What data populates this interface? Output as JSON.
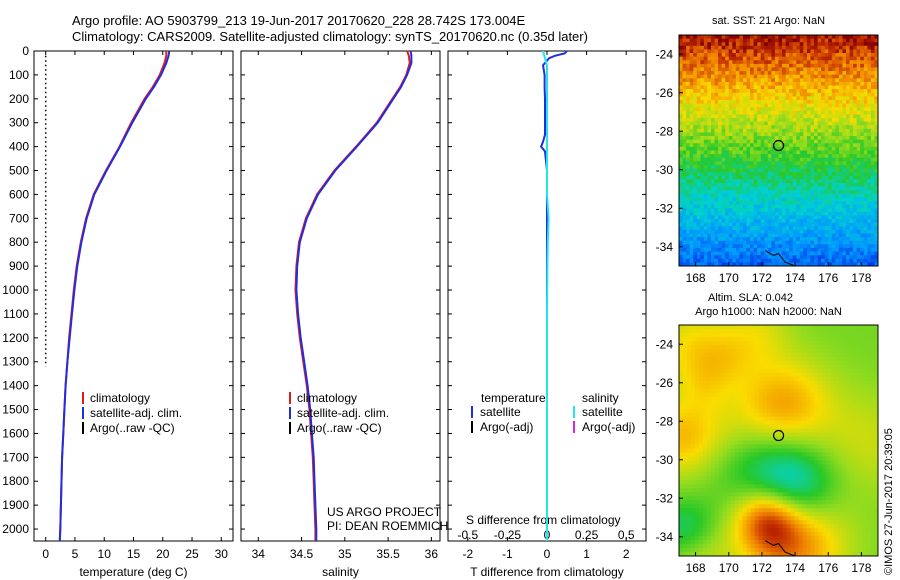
{
  "header": {
    "line1": "Argo profile: AO 5903799_213 19-Jun-2017 20170620_228 28.742S 173.004E",
    "line2": "Climatology: CARS2009. Satellite-adjusted climatology: synTS_20170620.nc (0.35d later)"
  },
  "timestamp": "©IMOS 27-Jun-2017 20:39:05",
  "chart_data": [
    {
      "type": "line",
      "panel": "temperature",
      "xlabel": "temperature (deg C)",
      "xlim": [
        -2,
        32
      ],
      "xticks": [
        0,
        5,
        10,
        15,
        20,
        25,
        30
      ],
      "ylim": [
        2050,
        0
      ],
      "yticks": [
        0,
        100,
        200,
        300,
        400,
        500,
        600,
        700,
        800,
        900,
        1000,
        1100,
        1200,
        1300,
        1400,
        1500,
        1600,
        1700,
        1800,
        1900,
        2000
      ],
      "legend": [
        "climatology",
        "satellite-adj. clim.",
        "Argo(..raw -QC)"
      ],
      "legend_colors": [
        "#e31a1c",
        "#1f2fe0",
        "#000000"
      ],
      "series": [
        {
          "name": "climatology",
          "color": "#e31a1c",
          "depth": [
            0,
            20,
            50,
            100,
            150,
            200,
            300,
            400,
            500,
            600,
            700,
            800,
            900,
            1000,
            1100,
            1200,
            1300,
            1400,
            1500,
            1600,
            1700,
            1800,
            1900,
            2000,
            2050
          ],
          "values": [
            20.6,
            20.6,
            20.3,
            19.5,
            18.3,
            16.9,
            14.6,
            12.6,
            10.3,
            8.2,
            6.9,
            6.0,
            5.3,
            4.8,
            4.4,
            4.0,
            3.7,
            3.4,
            3.2,
            3.0,
            2.8,
            2.7,
            2.6,
            2.5,
            2.4
          ]
        },
        {
          "name": "satellite-adj. clim.",
          "color": "#1f2fe0",
          "depth": [
            0,
            20,
            50,
            100,
            150,
            200,
            300,
            400,
            500,
            600,
            700,
            800,
            900,
            1000,
            1100,
            1200,
            1300,
            1400,
            1500,
            1600,
            1700,
            1800,
            1900,
            2000,
            2050
          ],
          "values": [
            21.1,
            21.0,
            20.6,
            19.7,
            18.5,
            17.1,
            14.8,
            12.7,
            10.4,
            8.3,
            7.0,
            6.1,
            5.4,
            4.9,
            4.5,
            4.1,
            3.7,
            3.4,
            3.2,
            3.0,
            2.8,
            2.7,
            2.6,
            2.5,
            2.4
          ]
        },
        {
          "name": "Argo(..raw -QC)",
          "color": "#000000",
          "depth": [
            20,
            1320
          ],
          "values": [
            0,
            0
          ],
          "style": "dotted"
        }
      ]
    },
    {
      "type": "line",
      "panel": "salinity",
      "xlabel": "salinity",
      "xlim": [
        33.8,
        36.1
      ],
      "xticks": [
        34,
        34.5,
        35,
        35.5,
        36
      ],
      "ylim": [
        2050,
        0
      ],
      "legend": [
        "climatology",
        "satellite-adj. clim.",
        "Argo(..raw -QC)"
      ],
      "legend_colors": [
        "#e31a1c",
        "#1f2fe0",
        "#000000"
      ],
      "series": [
        {
          "name": "climatology",
          "color": "#e31a1c",
          "depth": [
            0,
            20,
            50,
            100,
            150,
            200,
            300,
            400,
            500,
            600,
            700,
            800,
            900,
            1000,
            1100,
            1200,
            1300,
            1400,
            1500,
            1600,
            1700,
            1800,
            1900,
            2000,
            2050
          ],
          "values": [
            35.72,
            35.74,
            35.75,
            35.71,
            35.64,
            35.55,
            35.37,
            35.13,
            34.88,
            34.68,
            34.55,
            34.47,
            34.44,
            34.43,
            34.45,
            34.48,
            34.52,
            34.56,
            34.59,
            34.61,
            34.63,
            34.64,
            34.65,
            34.66,
            34.66
          ]
        },
        {
          "name": "satellite-adj. clim.",
          "color": "#1f2fe0",
          "depth": [
            0,
            20,
            50,
            100,
            150,
            200,
            300,
            400,
            500,
            600,
            700,
            800,
            900,
            1000,
            1100,
            1200,
            1300,
            1400,
            1500,
            1600,
            1700,
            1800,
            1900,
            2000,
            2050
          ],
          "values": [
            35.76,
            35.77,
            35.77,
            35.72,
            35.65,
            35.56,
            35.38,
            35.14,
            34.89,
            34.69,
            34.56,
            34.48,
            34.45,
            34.44,
            34.46,
            34.49,
            34.53,
            34.57,
            34.6,
            34.62,
            34.64,
            34.65,
            34.66,
            34.67,
            34.67
          ]
        }
      ],
      "annotation": [
        "US ARGO PROJECT",
        "PI: DEAN ROEMMICH"
      ]
    },
    {
      "type": "line",
      "panel": "difference",
      "xlabel": "T difference from climatology",
      "xlabel_top": "S difference from climatology",
      "xlim": [
        -2.5,
        2.5
      ],
      "xticks": [
        -2,
        -1,
        0,
        1,
        2
      ],
      "top_xticks": [
        -0.5,
        -0.25,
        0,
        0.25,
        0.5
      ],
      "top_xticklabels": [
        "-0.5",
        "-0.25",
        "0",
        "0.25",
        "0.5"
      ],
      "ylim": [
        2050,
        0
      ],
      "legend_headers": [
        "temperature",
        "salinity"
      ],
      "legend": [
        "satellite",
        "Argo(-adj)",
        "satellite",
        "Argo(-adj)"
      ],
      "legend_colors": [
        "#1f2fe0",
        "#000000",
        "#22e5f0",
        "#e020e0"
      ],
      "series": [
        {
          "name": "temperature satellite",
          "color": "#1f2fe0",
          "depth": [
            0,
            10,
            20,
            30,
            40,
            60,
            80,
            100,
            150,
            200,
            300,
            350,
            380,
            400,
            420,
            500,
            700,
            900,
            1100,
            1300,
            1500,
            1700,
            1900,
            2050
          ],
          "values": [
            0.5,
            0.45,
            0.2,
            0.05,
            0.0,
            -0.1,
            -0.08,
            -0.06,
            -0.06,
            -0.05,
            -0.05,
            -0.05,
            -0.1,
            -0.15,
            -0.05,
            0.0,
            0.0,
            0.0,
            0.0,
            0.0,
            0.0,
            0.0,
            0.0,
            0.0
          ]
        },
        {
          "name": "salinity satellite",
          "color": "#22e5f0",
          "depth": [
            0,
            30,
            60,
            100,
            200,
            400,
            600,
            700,
            750,
            800,
            900,
            1100,
            1300,
            1500,
            1700,
            1900,
            2050
          ],
          "values": [
            -0.1,
            -0.05,
            0.0,
            0.0,
            0.0,
            0.0,
            0.0,
            0.04,
            0.03,
            0.02,
            0.01,
            0.0,
            0.0,
            0.0,
            0.0,
            0.0,
            0.0
          ]
        }
      ]
    },
    {
      "type": "heatmap",
      "panel": "map-sst",
      "title": "sat. SST: 21 Argo: NaN",
      "xlim": [
        167,
        179
      ],
      "ylim": [
        -35,
        -23
      ],
      "xticks": [
        168,
        170,
        172,
        174,
        176,
        178
      ],
      "yticks": [
        -24,
        -26,
        -28,
        -30,
        -32,
        -34
      ],
      "marker": {
        "lon": 173.004,
        "lat": -28.742
      }
    },
    {
      "type": "heatmap",
      "panel": "map-sla",
      "title": "Altim. SLA: 0.042",
      "subtitle": "Argo h1000: NaN h2000: NaN",
      "xlim": [
        167,
        179
      ],
      "ylim": [
        -35,
        -23
      ],
      "xticks": [
        168,
        170,
        172,
        174,
        176,
        178
      ],
      "yticks": [
        -24,
        -26,
        -28,
        -30,
        -32,
        -34
      ],
      "marker": {
        "lon": 173.004,
        "lat": -28.742
      }
    }
  ]
}
